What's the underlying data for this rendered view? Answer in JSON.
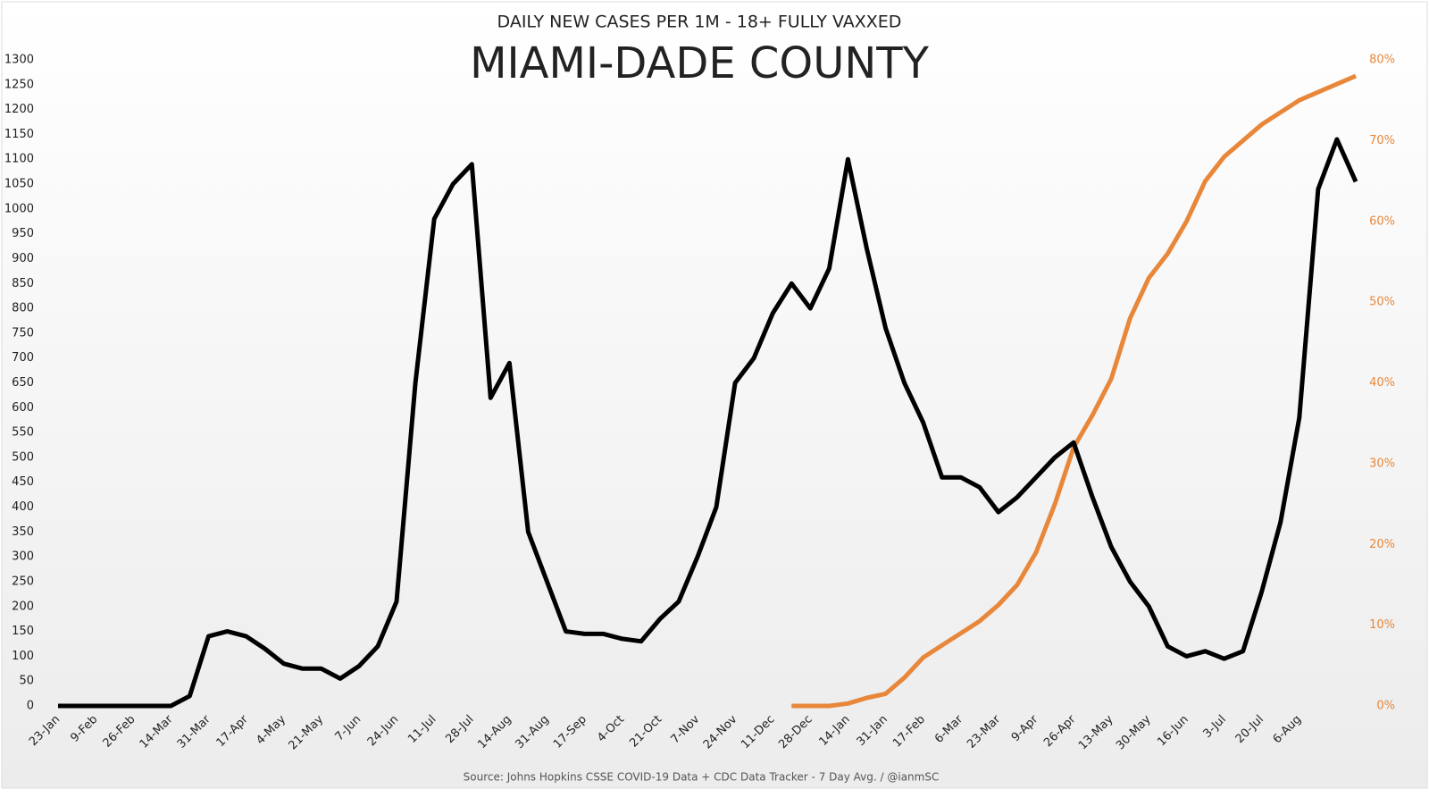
{
  "chart_data": {
    "type": "line",
    "subtitle": "DAILY NEW CASES PER 1M - 18+ FULLY VAXXED",
    "title": "MIAMI-DADE COUNTY",
    "source": "Source: Johns Hopkins CSSE COVID-19 Data + CDC Data Tracker  - 7 Day Avg. / @ianmSC",
    "categories": [
      "23-Jan",
      null,
      "9-Feb",
      null,
      "26-Feb",
      null,
      "14-Mar",
      null,
      "31-Mar",
      null,
      "17-Apr",
      null,
      "4-May",
      null,
      "21-May",
      null,
      "7-Jun",
      null,
      "24-Jun",
      null,
      "11-Jul",
      null,
      "28-Jul",
      null,
      "14-Aug",
      null,
      "31-Aug",
      null,
      "17-Sep",
      null,
      "4-Oct",
      null,
      "21-Oct",
      null,
      "7-Nov",
      null,
      "24-Nov",
      null,
      "11-Dec",
      null,
      "28-Dec",
      null,
      "14-Jan",
      null,
      "31-Jan",
      null,
      "17-Feb",
      null,
      "6-Mar",
      null,
      "23-Mar",
      null,
      "9-Apr",
      null,
      "26-Apr",
      null,
      "13-May",
      null,
      "30-May",
      null,
      "16-Jun",
      null,
      "3-Jul",
      null,
      "20-Jul",
      null,
      "6-Aug",
      null,
      null,
      null
    ],
    "series": [
      {
        "color": "#000000",
        "values": [
          0,
          0,
          0,
          0,
          0,
          0,
          0,
          20,
          140,
          150,
          140,
          115,
          85,
          75,
          75,
          55,
          80,
          120,
          210,
          650,
          980,
          1050,
          1090,
          620,
          690,
          350,
          250,
          150,
          145,
          145,
          135,
          130,
          175,
          210,
          300,
          400,
          650,
          700,
          790,
          850,
          800,
          880,
          1100,
          920,
          760,
          650,
          570,
          460,
          460,
          440,
          390,
          420,
          460,
          500,
          530,
          420,
          320,
          250,
          200,
          120,
          100,
          110,
          95,
          110,
          230,
          370,
          580,
          1040,
          1140,
          1055
        ]
      },
      {
        "color": "#e8873a",
        "axis": "y2",
        "values": [
          null,
          null,
          null,
          null,
          null,
          null,
          null,
          null,
          null,
          null,
          null,
          null,
          null,
          null,
          null,
          null,
          null,
          null,
          null,
          null,
          null,
          null,
          null,
          null,
          null,
          null,
          null,
          null,
          null,
          null,
          null,
          null,
          null,
          null,
          null,
          null,
          null,
          null,
          null,
          0,
          0,
          0,
          0.3,
          1,
          1.5,
          3.5,
          6,
          7.5,
          9,
          10.5,
          12.5,
          15,
          19,
          25,
          32,
          36,
          40.5,
          48,
          53,
          56,
          60,
          65,
          68,
          70,
          72,
          73.5,
          75,
          76,
          77,
          78
        ]
      }
    ],
    "ylim": [
      0,
      1300
    ],
    "yticks": [
      0,
      50,
      100,
      150,
      200,
      250,
      300,
      350,
      400,
      450,
      500,
      550,
      600,
      650,
      700,
      750,
      800,
      850,
      900,
      950,
      1000,
      1050,
      1100,
      1150,
      1200,
      1250,
      1300
    ],
    "y2lim": [
      0,
      80
    ],
    "y2ticks": [
      {
        "value": 0,
        "label": "0%"
      },
      {
        "value": 10,
        "label": "10%"
      },
      {
        "value": 20,
        "label": "20%"
      },
      {
        "value": 30,
        "label": "30%"
      },
      {
        "value": 40,
        "label": "40%"
      },
      {
        "value": 50,
        "label": "50%"
      },
      {
        "value": 60,
        "label": "60%"
      },
      {
        "value": 70,
        "label": "70%"
      },
      {
        "value": 80,
        "label": "80%"
      }
    ]
  }
}
